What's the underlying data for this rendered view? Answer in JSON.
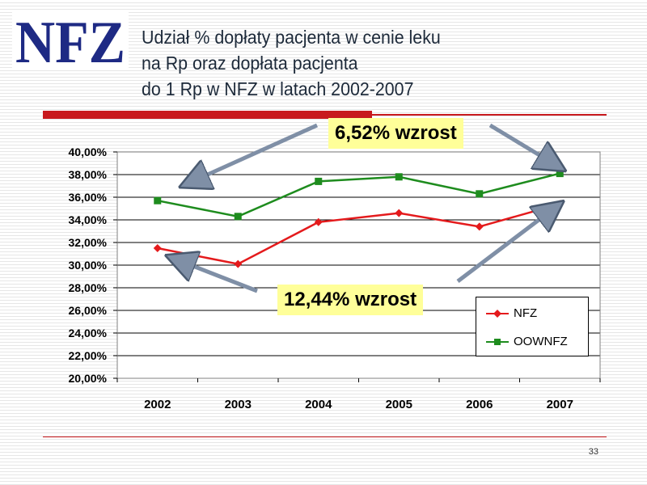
{
  "logo": {
    "text": "NFZ"
  },
  "title": {
    "line1": "Udział % dopłaty pacjenta w cenie leku",
    "line2": "na Rp oraz dopłata pacjenta",
    "line3": "do 1 Rp w NFZ w latach 2002-2007"
  },
  "colors": {
    "nfz": "#e41a1c",
    "oownfz": "#1e8c1e",
    "brand": "#1e2a84",
    "accent_red": "#c8191d",
    "callout_bg": "#ffff99"
  },
  "callouts": {
    "top": "6,52% wzrost",
    "bottom": "12,44% wzrost"
  },
  "legend": {
    "placement": "bottom-right",
    "items": [
      "NFZ",
      "OOWNFZ"
    ]
  },
  "page_number": "33",
  "chart_data": {
    "type": "line",
    "categories": [
      "2002",
      "2003",
      "2004",
      "2005",
      "2006",
      "2007"
    ],
    "series": [
      {
        "name": "NFZ",
        "values": [
          31.5,
          30.1,
          33.8,
          34.6,
          33.4,
          35.4
        ],
        "color": "#e41a1c",
        "marker": "diamond"
      },
      {
        "name": "OOWNFZ",
        "values": [
          35.7,
          34.3,
          37.4,
          37.8,
          36.3,
          38.1
        ],
        "color": "#1e8c1e",
        "marker": "square"
      }
    ],
    "ylim": [
      20,
      40
    ],
    "y_ticks": [
      "20,00%",
      "22,00%",
      "24,00%",
      "26,00%",
      "28,00%",
      "30,00%",
      "32,00%",
      "34,00%",
      "36,00%",
      "38,00%",
      "40,00%"
    ],
    "grid": true,
    "annotations": [
      "6,52% wzrost",
      "12,44% wzrost"
    ]
  }
}
